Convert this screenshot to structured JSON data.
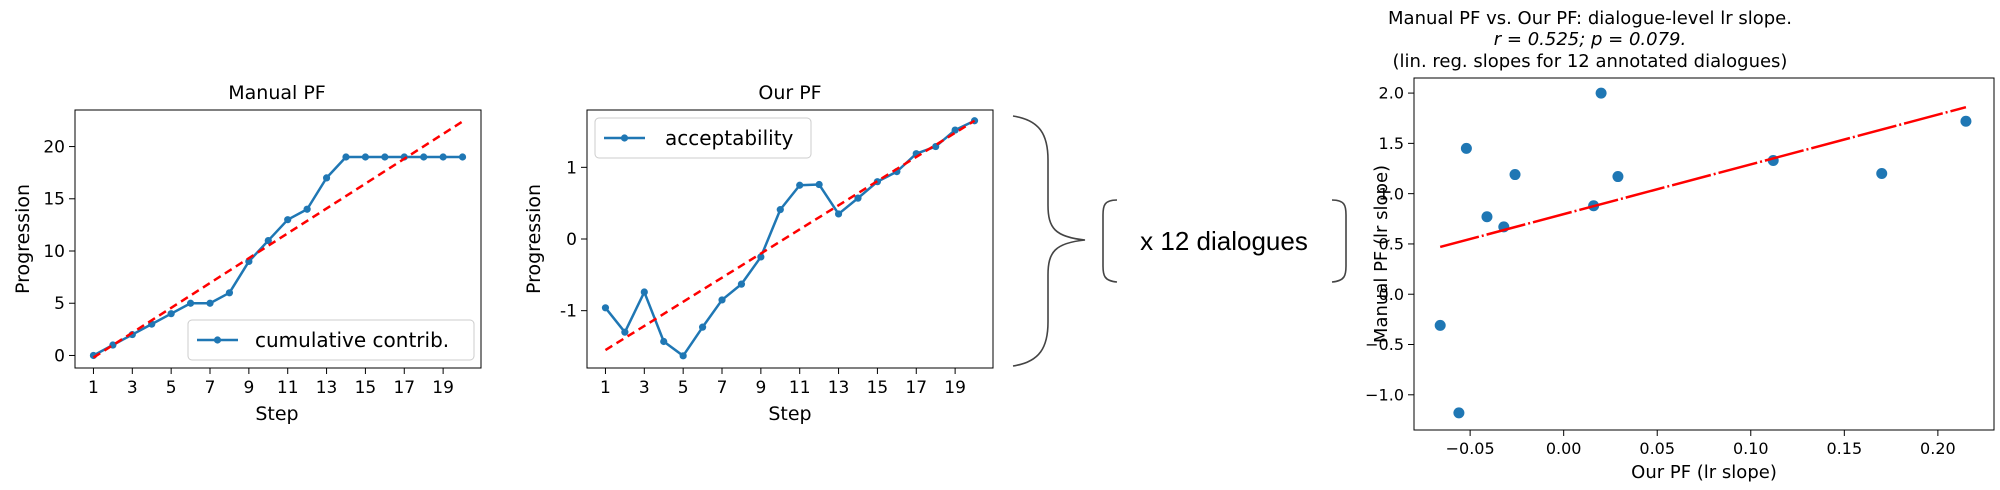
{
  "chart_data": [
    {
      "type": "line",
      "title": "Manual PF",
      "xlabel": "Step",
      "ylabel": "Progression",
      "xlim": [
        0.05,
        20.95
      ],
      "ylim": [
        -1.2,
        23.5
      ],
      "xticks": [
        1,
        3,
        5,
        7,
        9,
        11,
        13,
        15,
        17,
        19
      ],
      "yticks": [
        0,
        5,
        10,
        15,
        20
      ],
      "legend_position": "lower-right",
      "grid": false,
      "series": [
        {
          "name": "cumulative contrib.",
          "x": [
            1,
            2,
            3,
            4,
            5,
            6,
            7,
            8,
            9,
            10,
            11,
            12,
            13,
            14,
            15,
            16,
            17,
            18,
            19,
            20
          ],
          "values": [
            0,
            1,
            2,
            3,
            4,
            5,
            5,
            6,
            9,
            11,
            13,
            14,
            17,
            19,
            19,
            19,
            19,
            19,
            19,
            19
          ],
          "color": "#1f77b4",
          "style": "line-with-markers"
        },
        {
          "x": [
            1,
            20
          ],
          "values": [
            -0.2,
            22.4
          ],
          "color": "#ff0000",
          "style": "dashed"
        }
      ]
    },
    {
      "type": "line",
      "title": "Our PF",
      "xlabel": "Step",
      "ylabel": "Progression",
      "xlim": [
        0.05,
        20.95
      ],
      "ylim": [
        -1.8,
        1.8
      ],
      "xticks": [
        1,
        3,
        5,
        7,
        9,
        11,
        13,
        15,
        17,
        19
      ],
      "yticks": [
        -1,
        0,
        1
      ],
      "legend_position": "upper-left",
      "grid": false,
      "series": [
        {
          "name": "acceptability",
          "x": [
            1,
            2,
            3,
            4,
            5,
            6,
            7,
            8,
            9,
            10,
            11,
            12,
            13,
            14,
            15,
            16,
            17,
            18,
            19,
            20
          ],
          "values": [
            -0.96,
            -1.3,
            -0.74,
            -1.43,
            -1.63,
            -1.23,
            -0.85,
            -0.63,
            -0.25,
            0.41,
            0.75,
            0.76,
            0.35,
            0.57,
            0.8,
            0.94,
            1.19,
            1.29,
            1.52,
            1.65
          ],
          "color": "#1f77b4",
          "style": "line-with-markers"
        },
        {
          "x": [
            1,
            20
          ],
          "values": [
            -1.55,
            1.65
          ],
          "color": "#ff0000",
          "style": "dashed"
        }
      ]
    },
    {
      "type": "scatter",
      "title": "Manual PF vs. Our PF: dialogue-level lr slope.",
      "subtitle_lines": [
        "r = 0.525;  p = 0.079.",
        "(lin. reg. slopes for 12 annotated dialogues)"
      ],
      "xlabel": "Our PF (lr slope)",
      "ylabel": "Manual PF (lr slope)",
      "xlim": [
        -0.08,
        0.23
      ],
      "ylim": [
        -1.35,
        2.15
      ],
      "xticks": [
        "−0.05",
        "0.00",
        "0.05",
        "0.10",
        "0.15",
        "0.20"
      ],
      "xtick_values": [
        -0.05,
        0,
        0.05,
        0.1,
        0.15,
        0.2
      ],
      "yticks": [
        "−1.0",
        "−0.5",
        "0.0",
        "0.5",
        "1.0",
        "1.5",
        "2.0"
      ],
      "ytick_values": [
        -1,
        -0.5,
        0,
        0.5,
        1,
        1.5,
        2
      ],
      "grid": false,
      "series": [
        {
          "x": [
            -0.066,
            -0.056,
            -0.052,
            -0.041,
            -0.032,
            -0.026,
            0.016,
            0.02,
            0.029,
            0.112,
            0.17,
            0.215
          ],
          "values": [
            -0.31,
            -1.18,
            1.45,
            0.77,
            0.67,
            1.19,
            0.88,
            2.0,
            1.17,
            1.33,
            1.2,
            1.72
          ],
          "color": "#1f77b4",
          "style": "markers"
        },
        {
          "x": [
            -0.066,
            0.215
          ],
          "values": [
            0.47,
            1.86
          ],
          "color": "#ff0000",
          "style": "dash-dot-fit"
        }
      ]
    }
  ],
  "connector": {
    "label": "x 12 dialogues"
  }
}
